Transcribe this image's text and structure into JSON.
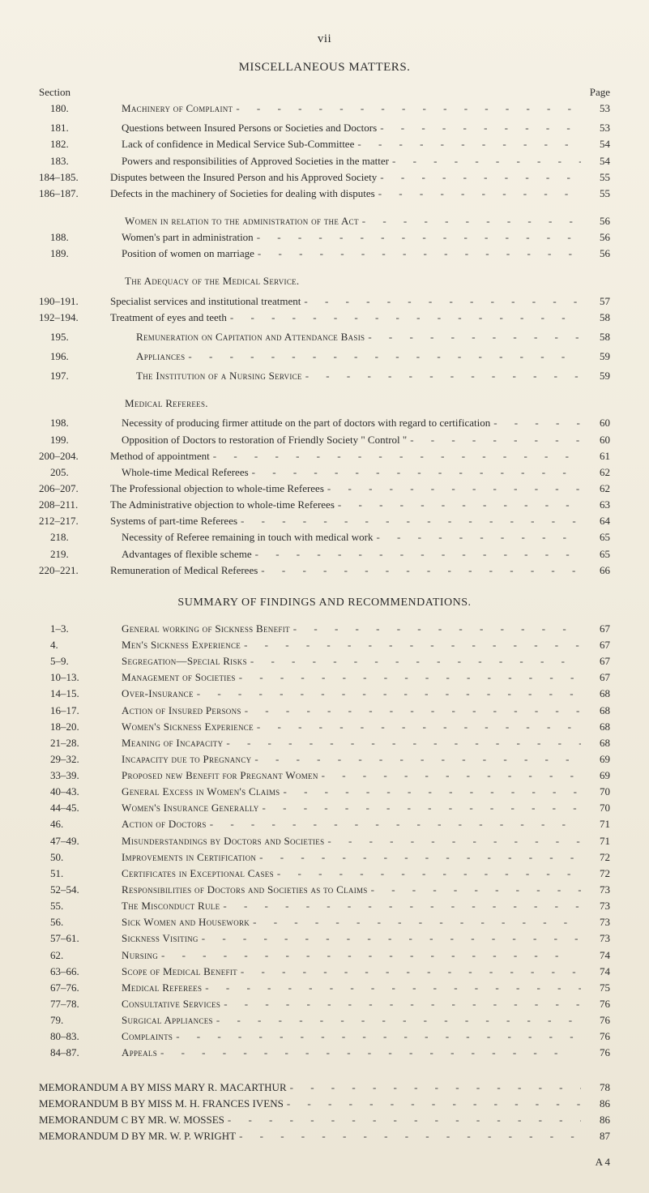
{
  "page_number_roman": "vii",
  "title": "MISCELLANEOUS MATTERS.",
  "column_headers": {
    "section": "Section",
    "page": "Page"
  },
  "summary_title": "SUMMARY OF FINDINGS AND RECOMMENDATIONS.",
  "signature": "A 4",
  "leader_text": "- - - - - - - - - - - - - - - - - - - -",
  "rows": [
    {
      "sec": "180.",
      "label": "Machinery of Complaint",
      "sc": true,
      "page": "53",
      "indent": true
    },
    {
      "gap": "sm"
    },
    {
      "sec": "181.",
      "label": "Questions between Insured Persons or Societies and Doctors",
      "page": "53",
      "indent": true
    },
    {
      "sec": "182.",
      "label": "Lack of confidence in Medical Service Sub-Committee",
      "page": "54",
      "indent": true
    },
    {
      "sec": "183.",
      "label": "Powers and responsibilities of Approved Societies in the matter",
      "page": "54",
      "indent": true
    },
    {
      "sec": "184–185.",
      "label": "Disputes between the Insured Person and his Approved Society",
      "page": "55"
    },
    {
      "sec": "186–187.",
      "label": "Defects in the machinery of Societies for dealing with disputes",
      "page": "55"
    },
    {
      "gap": "md"
    },
    {
      "sec": "",
      "label": "Women in relation to the administration of the Act",
      "sc": true,
      "page": "56",
      "indent_extra": true
    },
    {
      "sec": "188.",
      "label": "Women's part in administration",
      "page": "56",
      "indent": true
    },
    {
      "sec": "189.",
      "label": "Position of women on marriage",
      "page": "56",
      "indent": true
    },
    {
      "gap": "md"
    },
    {
      "sec": "",
      "label": "The Adequacy of the Medical Service.",
      "sc": true,
      "no_page": true,
      "indent_extra": true
    },
    {
      "gap": "sm"
    },
    {
      "sec": "190–191.",
      "label": "Specialist services and institutional treatment",
      "page": "57"
    },
    {
      "sec": "192–194.",
      "label": "Treatment of eyes and teeth",
      "page": "58"
    },
    {
      "gap": "sm"
    },
    {
      "sec": "195.",
      "label": "Remuneration on Capitation and Attendance Basis",
      "sc": true,
      "page": "58",
      "indent": true,
      "indent_extra": true
    },
    {
      "gap": "sm"
    },
    {
      "sec": "196.",
      "label": "Appliances",
      "sc": true,
      "page": "59",
      "indent": true,
      "indent_extra": true
    },
    {
      "gap": "sm"
    },
    {
      "sec": "197.",
      "label": "The Institution of a Nursing Service",
      "sc": true,
      "page": "59",
      "indent": true,
      "indent_extra": true
    },
    {
      "gap": "md"
    },
    {
      "sec": "",
      "label": "Medical Referees.",
      "sc": true,
      "no_page": true,
      "indent_extra": true
    },
    {
      "gap": "sm"
    },
    {
      "sec": "198.",
      "label": "Necessity of producing firmer attitude on the part of doctors with regard to certification",
      "page": "60",
      "indent": true
    },
    {
      "sec": "199.",
      "label": "Opposition of Doctors to restoration of Friendly Society \" Control \"",
      "page": "60",
      "indent": true
    },
    {
      "sec": "200–204.",
      "label": "Method of appointment",
      "page": "61"
    },
    {
      "sec": "205.",
      "label": "Whole-time Medical Referees",
      "page": "62",
      "indent": true
    },
    {
      "sec": "206–207.",
      "label": "The Professional objection to whole-time Referees",
      "page": "62"
    },
    {
      "sec": "208–211.",
      "label": "The Administrative objection to whole-time Referees",
      "page": "63"
    },
    {
      "sec": "212–217.",
      "label": "Systems of part-time Referees",
      "page": "64"
    },
    {
      "sec": "218.",
      "label": "Necessity of Referee remaining in touch with medical work",
      "page": "65",
      "indent": true
    },
    {
      "sec": "219.",
      "label": "Advantages of flexible scheme",
      "page": "65",
      "indent": true
    },
    {
      "sec": "220–221.",
      "label": "Remuneration of Medical Referees",
      "page": "66"
    }
  ],
  "summary_rows": [
    {
      "sec": "1–3.",
      "label": "General working of Sickness Benefit",
      "sc": true,
      "page": "67",
      "indent": true
    },
    {
      "sec": "4.",
      "label": "Men's Sickness Experience",
      "sc": true,
      "page": "67",
      "indent": true
    },
    {
      "sec": "5–9.",
      "label": "Segregation—Special Risks",
      "sc": true,
      "page": "67",
      "indent": true
    },
    {
      "sec": "10–13.",
      "label": "Management of Societies",
      "sc": true,
      "page": "67",
      "indent": true
    },
    {
      "sec": "14–15.",
      "label": "Over-Insurance",
      "sc": true,
      "page": "68",
      "indent": true
    },
    {
      "sec": "16–17.",
      "label": "Action of Insured Persons",
      "sc": true,
      "page": "68",
      "indent": true
    },
    {
      "sec": "18–20.",
      "label": "Women's Sickness Experience",
      "sc": true,
      "page": "68",
      "indent": true
    },
    {
      "sec": "21–28.",
      "label": "Meaning of Incapacity",
      "sc": true,
      "page": "68",
      "indent": true
    },
    {
      "sec": "29–32.",
      "label": "Incapacity due to Pregnancy",
      "sc": true,
      "page": "69",
      "indent": true
    },
    {
      "sec": "33–39.",
      "label": "Proposed new Benefit for Pregnant Women",
      "sc": true,
      "page": "69",
      "indent": true
    },
    {
      "sec": "40–43.",
      "label": "General Excess in Women's Claims",
      "sc": true,
      "page": "70",
      "indent": true
    },
    {
      "sec": "44–45.",
      "label": "Women's Insurance Generally",
      "sc": true,
      "page": "70",
      "indent": true
    },
    {
      "sec": "46.",
      "label": "Action of Doctors",
      "sc": true,
      "page": "71",
      "indent": true
    },
    {
      "sec": "47–49.",
      "label": "Misunderstandings by Doctors and Societies",
      "sc": true,
      "page": "71",
      "indent": true
    },
    {
      "sec": "50.",
      "label": "Improvements in Certification",
      "sc": true,
      "page": "72",
      "indent": true
    },
    {
      "sec": "51.",
      "label": "Certificates in Exceptional Cases",
      "sc": true,
      "page": "72",
      "indent": true
    },
    {
      "sec": "52–54.",
      "label": "Responsibilities of Doctors and Societies as to Claims",
      "sc": true,
      "page": "73",
      "indent": true
    },
    {
      "sec": "55.",
      "label": "The Misconduct Rule",
      "sc": true,
      "page": "73",
      "indent": true
    },
    {
      "sec": "56.",
      "label": "Sick Women and Housework",
      "sc": true,
      "page": "73",
      "indent": true
    },
    {
      "sec": "57–61.",
      "label": "Sickness Visiting",
      "sc": true,
      "page": "73",
      "indent": true
    },
    {
      "sec": "62.",
      "label": "Nursing",
      "sc": true,
      "page": "74",
      "indent": true
    },
    {
      "sec": "63–66.",
      "label": "Scope of Medical Benefit",
      "sc": true,
      "page": "74",
      "indent": true
    },
    {
      "sec": "67–76.",
      "label": "Medical Referees",
      "sc": true,
      "page": "75",
      "indent": true
    },
    {
      "sec": "77–78.",
      "label": "Consultative Services",
      "sc": true,
      "page": "76",
      "indent": true
    },
    {
      "sec": "79.",
      "label": "Surgical Appliances",
      "sc": true,
      "page": "76",
      "indent": true
    },
    {
      "sec": "80–83.",
      "label": "Complaints",
      "sc": true,
      "page": "76",
      "indent": true
    },
    {
      "sec": "84–87.",
      "label": "Appeals",
      "sc": true,
      "page": "76",
      "indent": true
    }
  ],
  "memoranda": [
    {
      "label": "MEMORANDUM A BY MISS MARY R. MACARTHUR",
      "page": "78"
    },
    {
      "label": "MEMORANDUM B BY MISS M. H. FRANCES IVENS",
      "page": "86"
    },
    {
      "label": "MEMORANDUM C BY MR. W. MOSSES",
      "page": "86"
    },
    {
      "label": "MEMORANDUM D BY MR. W. P. WRIGHT",
      "page": "87"
    }
  ]
}
